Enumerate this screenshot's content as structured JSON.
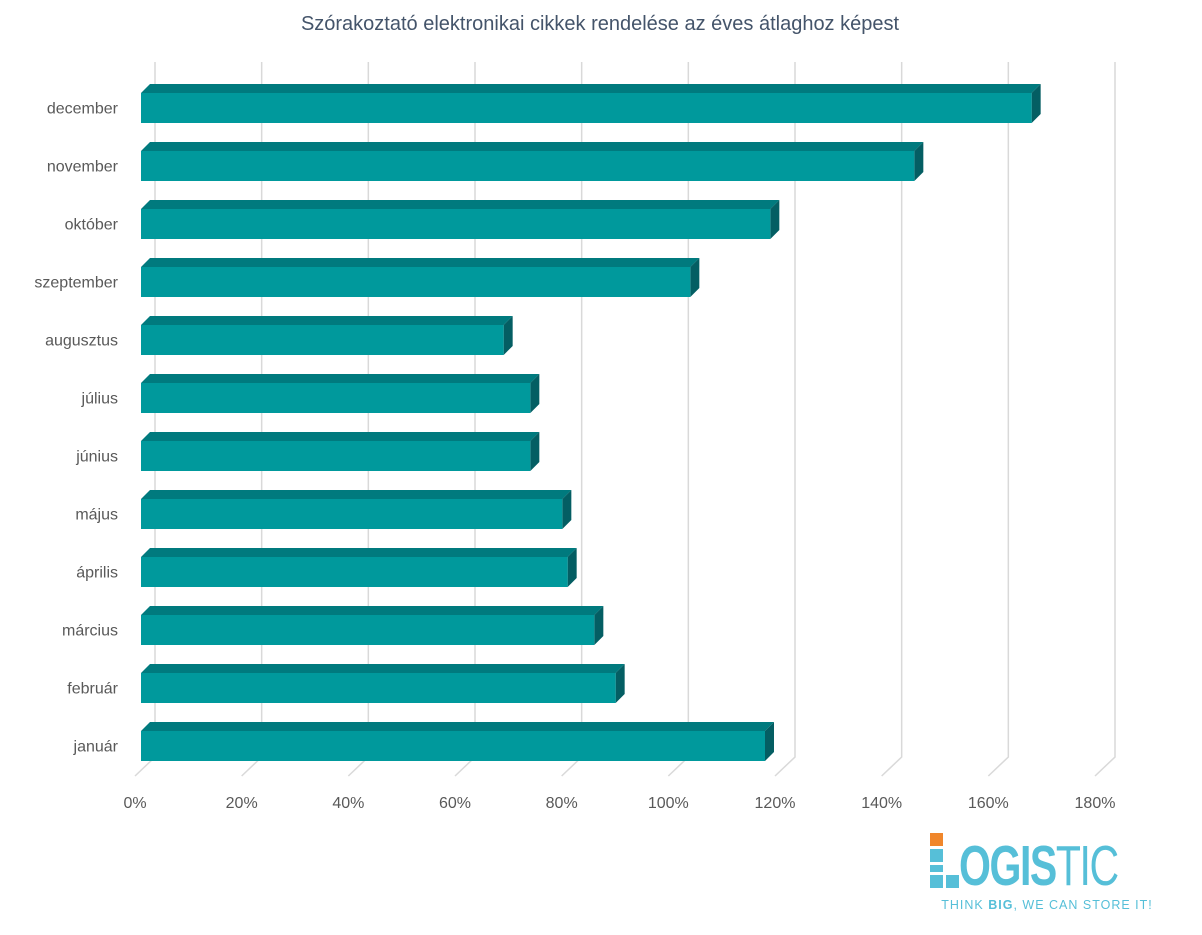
{
  "chart_data": {
    "type": "bar",
    "orientation": "horizontal",
    "style": "3d-bar",
    "title": "Szórakoztató elektronikai cikkek rendelése az éves átlaghoz képest",
    "categories": [
      "december",
      "november",
      "október",
      "szeptember",
      "augusztus",
      "július",
      "június",
      "május",
      "április",
      "március",
      "február",
      "január"
    ],
    "values": [
      167,
      145,
      118,
      103,
      68,
      73,
      73,
      79,
      80,
      85,
      89,
      117
    ],
    "unit": "%",
    "xlabel": "",
    "ylabel": "",
    "x_ticks": [
      "0%",
      "20%",
      "40%",
      "60%",
      "80%",
      "100%",
      "120%",
      "140%",
      "160%",
      "180%"
    ],
    "xlim": [
      0,
      180
    ],
    "grid": true,
    "legend": "none",
    "colors": {
      "bar_front": "#00999C",
      "bar_top": "#007A7E",
      "bar_side": "#045E63",
      "gridline": "#D9D9D9",
      "axis_text": "#595959",
      "title_text": "#44546A"
    }
  },
  "logo": {
    "brand_bold": "OGIS",
    "brand_light": "TIC",
    "tagline_pre": "THINK ",
    "tagline_bold": "BIG",
    "tagline_post": ", WE CAN STORE IT!",
    "colors": {
      "blue": "#56BFD8",
      "orange": "#F0862B"
    }
  }
}
